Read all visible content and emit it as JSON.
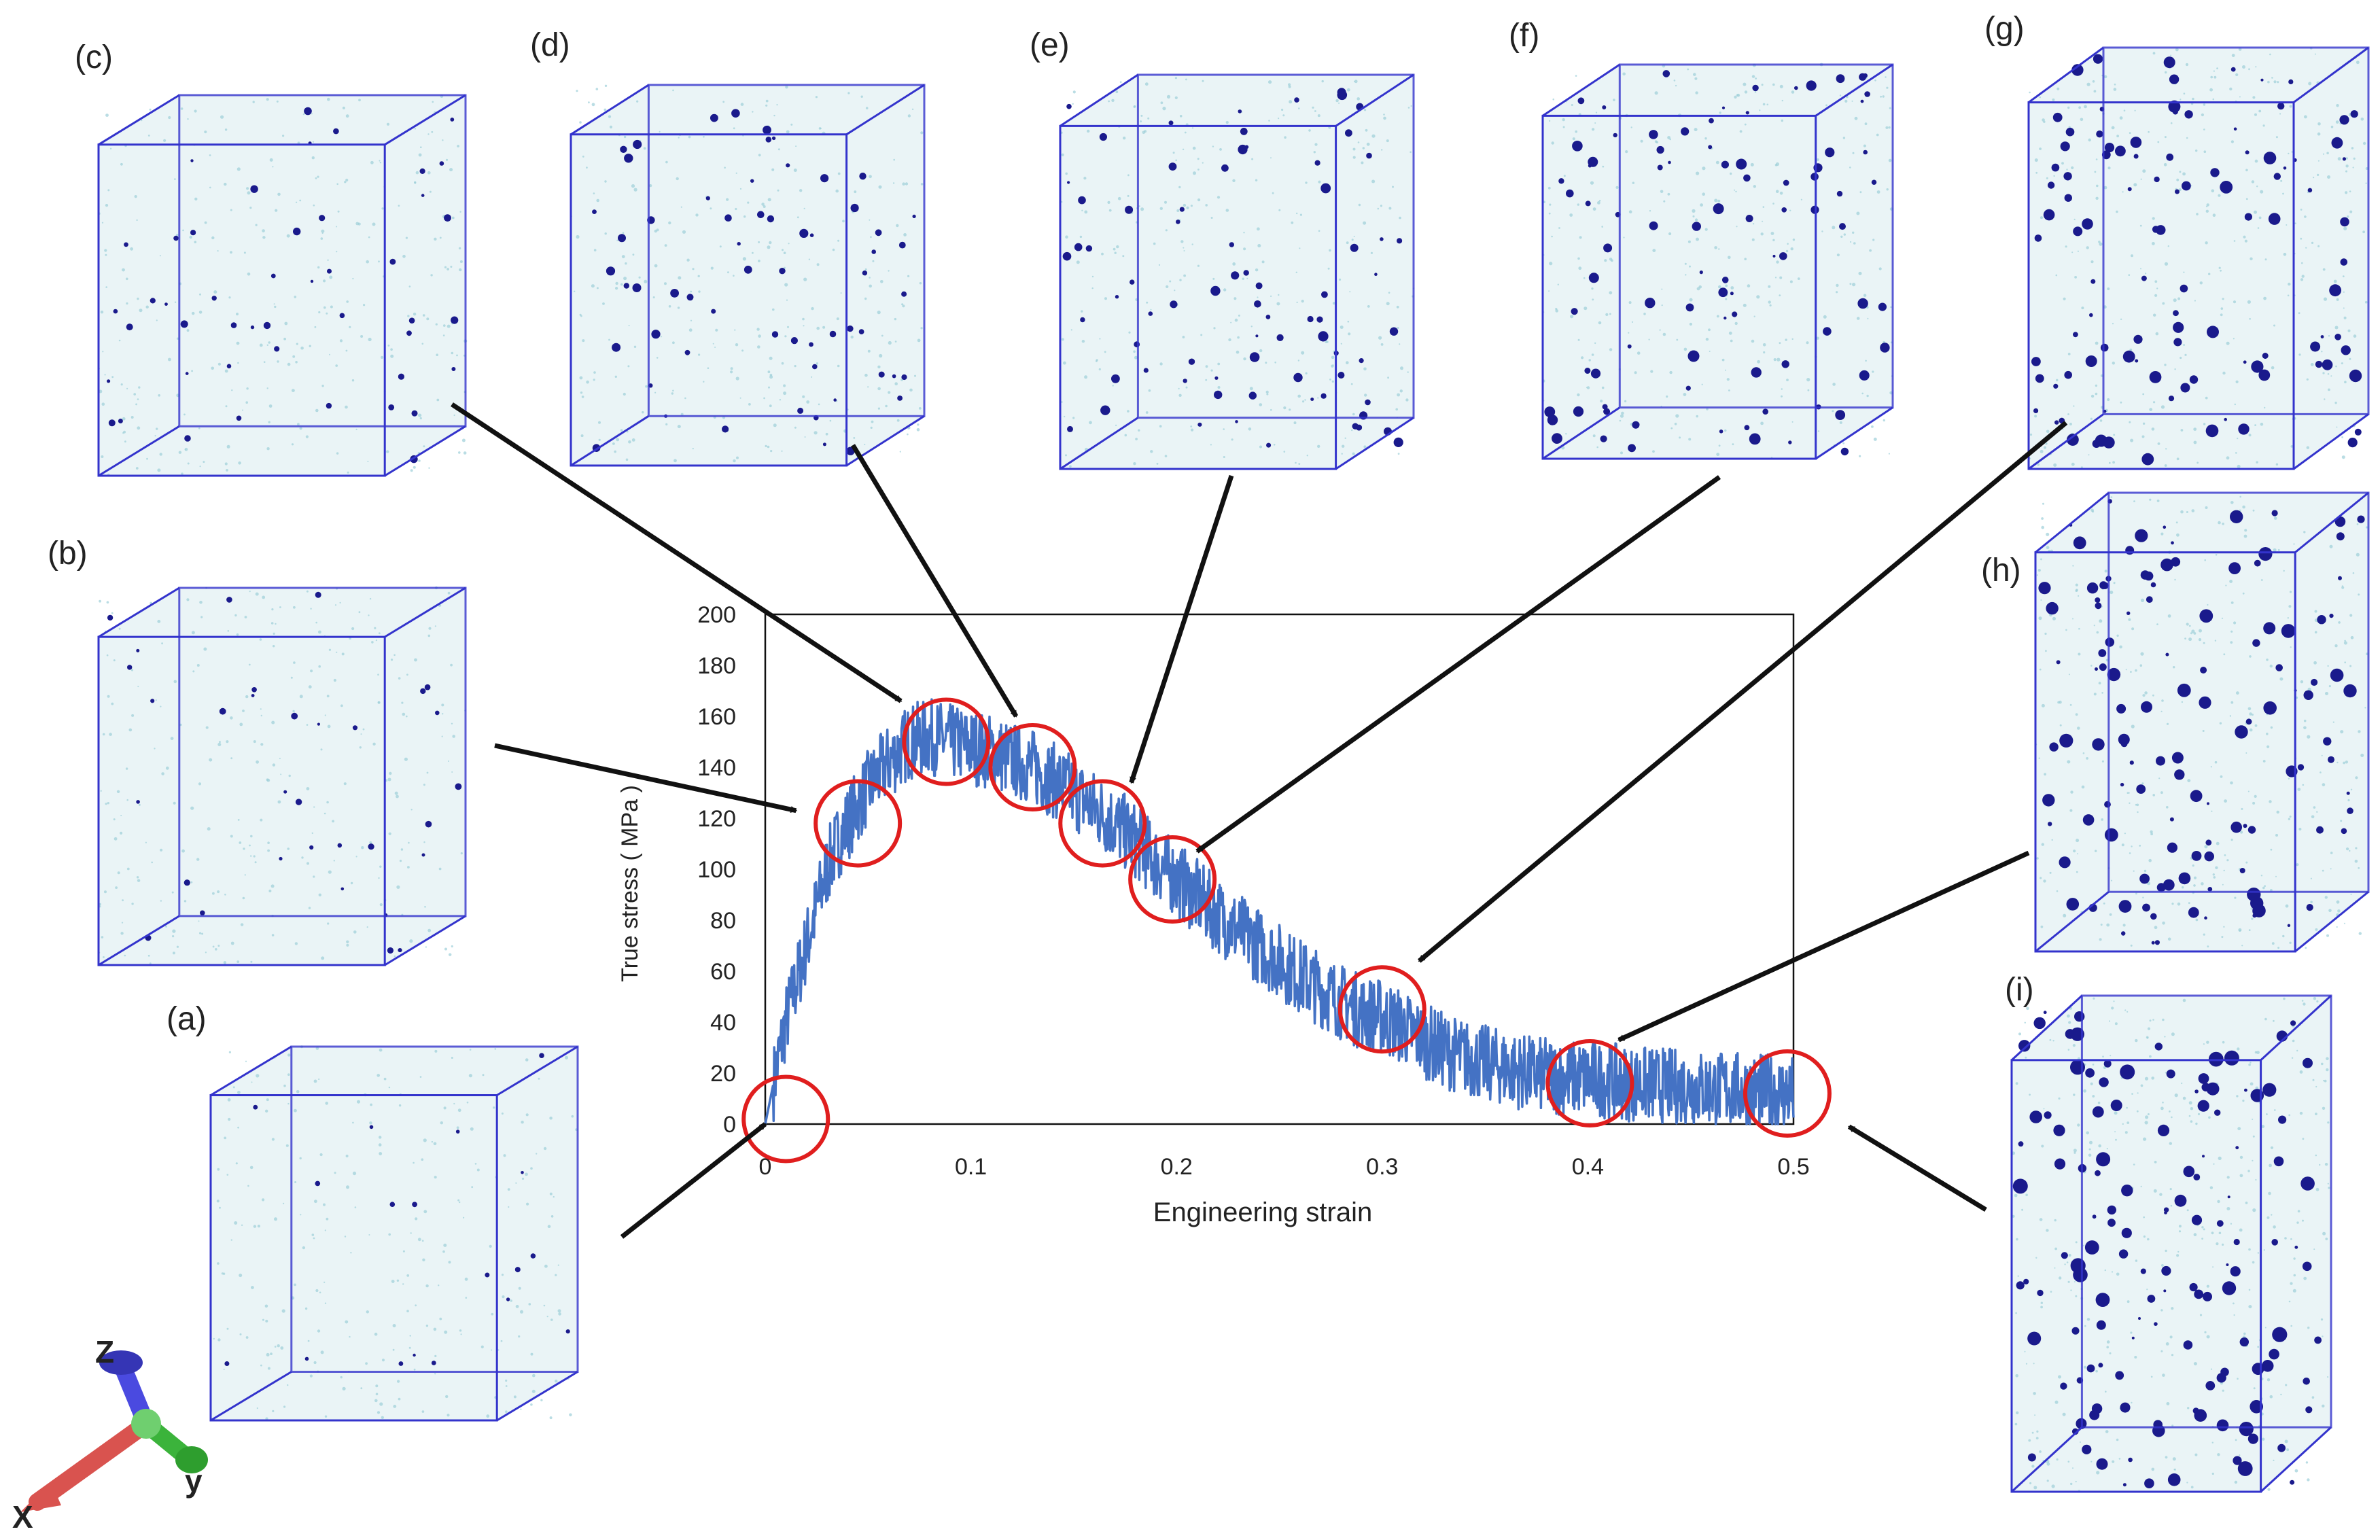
{
  "chart_data": {
    "type": "line",
    "title": "",
    "xlabel": "Engineering strain",
    "ylabel": "True stress ( MPa )",
    "xlim": [
      0,
      0.5
    ],
    "ylim": [
      0,
      200
    ],
    "x_ticks": [
      0,
      0.1,
      0.2,
      0.3,
      0.4,
      0.5
    ],
    "x_tick_labels": [
      "0",
      "0.1",
      "0.2",
      "0.3",
      "0.4",
      "0.5"
    ],
    "y_ticks": [
      0,
      20,
      40,
      60,
      80,
      100,
      120,
      140,
      160,
      180,
      200
    ],
    "y_tick_labels": [
      "0",
      "20",
      "40",
      "60",
      "80",
      "100",
      "120",
      "140",
      "160",
      "180",
      "200"
    ],
    "series": [
      {
        "name": "True stress",
        "color": "#4472C4",
        "x": [
          0,
          0.005,
          0.01,
          0.015,
          0.02,
          0.025,
          0.03,
          0.035,
          0.04,
          0.045,
          0.05,
          0.06,
          0.07,
          0.08,
          0.09,
          0.1,
          0.11,
          0.12,
          0.13,
          0.14,
          0.15,
          0.16,
          0.17,
          0.18,
          0.19,
          0.2,
          0.21,
          0.22,
          0.23,
          0.24,
          0.25,
          0.26,
          0.27,
          0.28,
          0.29,
          0.3,
          0.31,
          0.32,
          0.33,
          0.34,
          0.35,
          0.36,
          0.37,
          0.38,
          0.39,
          0.4,
          0.42,
          0.44,
          0.46,
          0.48,
          0.5
        ],
        "y": [
          0,
          20,
          40,
          55,
          70,
          85,
          100,
          110,
          118,
          125,
          132,
          142,
          150,
          152,
          150,
          148,
          146,
          143,
          140,
          135,
          130,
          124,
          118,
          111,
          103,
          96,
          89,
          82,
          76,
          70,
          64,
          58,
          53,
          48,
          44,
          42,
          38,
          33,
          29,
          26,
          24,
          22,
          20,
          19,
          18,
          18,
          16,
          15,
          14,
          13,
          12
        ]
      }
    ],
    "noise_amplitude": 15,
    "markers": [
      {
        "label": "(a)",
        "x": 0.01,
        "y": 2
      },
      {
        "label": "(b)",
        "x": 0.045,
        "y": 118
      },
      {
        "label": "(c)",
        "x": 0.088,
        "y": 150
      },
      {
        "label": "(d)",
        "x": 0.13,
        "y": 140
      },
      {
        "label": "(e)",
        "x": 0.164,
        "y": 118
      },
      {
        "label": "(f)",
        "x": 0.198,
        "y": 96
      },
      {
        "label": "(g)",
        "x": 0.3,
        "y": 45
      },
      {
        "label": "(h)",
        "x": 0.401,
        "y": 16
      },
      {
        "label": "(i)",
        "x": 0.497,
        "y": 12
      }
    ],
    "snapshots": [
      {
        "label": "(a)",
        "target_x": 0.0,
        "target_y": 0
      },
      {
        "label": "(b)",
        "target_x": 0.015,
        "target_y": 123
      },
      {
        "label": "(c)",
        "target_x": 0.066,
        "target_y": 166
      },
      {
        "label": "(d)",
        "target_x": 0.122,
        "target_y": 160
      },
      {
        "label": "(e)",
        "target_x": 0.178,
        "target_y": 134
      },
      {
        "label": "(f)",
        "target_x": 0.21,
        "target_y": 107
      },
      {
        "label": "(g)",
        "target_x": 0.318,
        "target_y": 64
      },
      {
        "label": "(h)",
        "target_x": 0.415,
        "target_y": 33
      },
      {
        "label": "(i)",
        "target_x": 0.527,
        "target_y": -1
      }
    ],
    "colors": {
      "line": "#4472C4",
      "marker": "#E01E1E",
      "box_edge": "#3333CC",
      "void": "#1A1A8C",
      "speckle": "#9CCFD8"
    }
  },
  "axes_triad": {
    "x_label": "X",
    "y_label": "y",
    "z_label": "Z"
  }
}
